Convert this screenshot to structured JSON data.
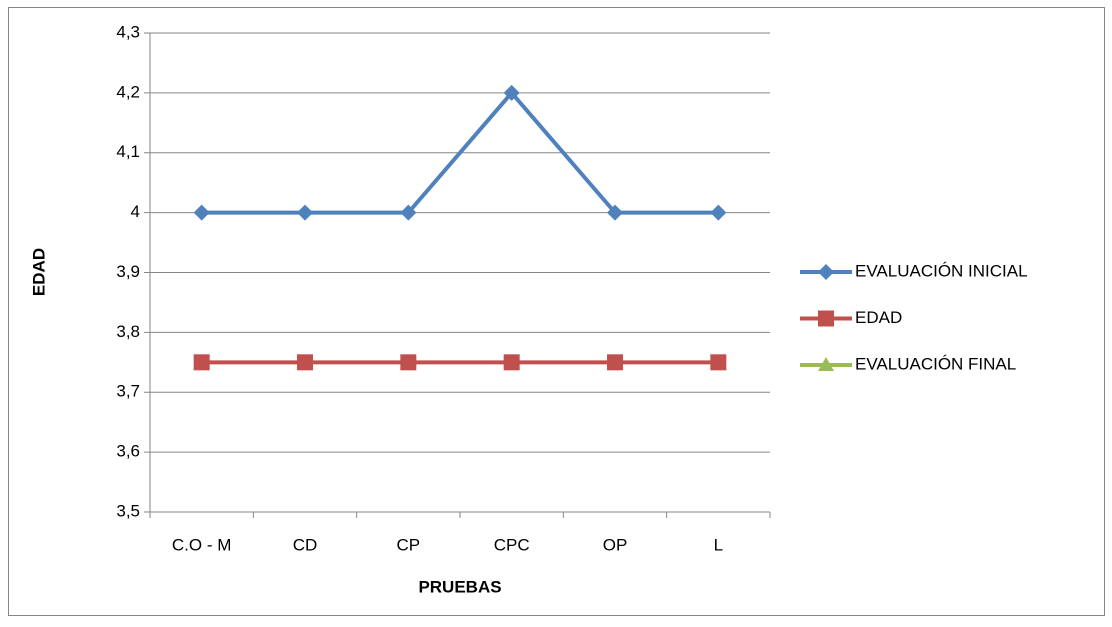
{
  "chart_data": {
    "type": "line",
    "x_label": "PRUEBAS",
    "y_label": "EDAD",
    "categories": [
      "C.O - M",
      "CD",
      "CP",
      "CPC",
      "OP",
      "L"
    ],
    "series": [
      {
        "name": "EVALUACIÓN INICIAL",
        "color": "#4f81bd",
        "marker": "diamond",
        "values": [
          4,
          4,
          4,
          4.2,
          4,
          4
        ]
      },
      {
        "name": "EDAD",
        "color": "#c0504d",
        "marker": "square",
        "values": [
          3.75,
          3.75,
          3.75,
          3.75,
          3.75,
          3.75
        ]
      },
      {
        "name": "EVALUACIÓN FINAL",
        "color": "#9bbb59",
        "marker": "triangle",
        "values": [
          null,
          null,
          null,
          null,
          null,
          null
        ]
      }
    ],
    "ylim": [
      3.5,
      4.3
    ],
    "yticks": [
      {
        "value": 3.5,
        "label": "3,5"
      },
      {
        "value": 3.6,
        "label": "3,6"
      },
      {
        "value": 3.7,
        "label": "3,7"
      },
      {
        "value": 3.8,
        "label": "3,8"
      },
      {
        "value": 3.9,
        "label": "3,9"
      },
      4,
      {
        "value": 4.1,
        "label": "4,1"
      },
      {
        "value": 4.2,
        "label": "4,2"
      },
      {
        "value": 4.3,
        "label": "4,3"
      }
    ],
    "grid": true,
    "legend": "right"
  }
}
